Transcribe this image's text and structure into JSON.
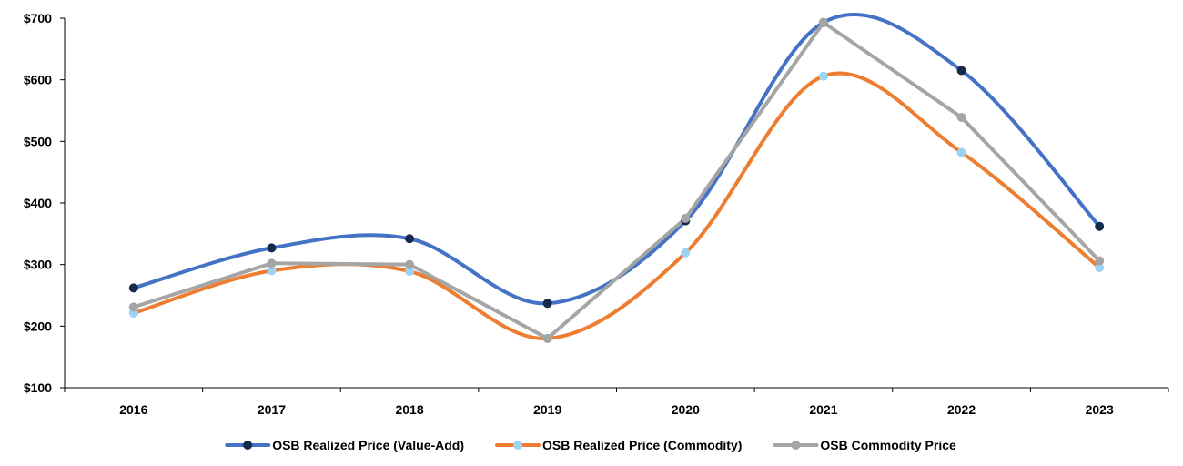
{
  "chart_data": {
    "type": "line",
    "title": "",
    "xlabel": "",
    "ylabel": "",
    "categories": [
      "2016",
      "2017",
      "2018",
      "2019",
      "2020",
      "2021",
      "2022",
      "2023"
    ],
    "ylim": [
      100,
      700
    ],
    "yticks": [
      100,
      200,
      300,
      400,
      500,
      600,
      700
    ],
    "ytick_labels": [
      "$100",
      "$200",
      "$300",
      "$400",
      "$500",
      "$600",
      "$700"
    ],
    "grid": false,
    "legend_position": "bottom",
    "series": [
      {
        "name": "OSB Realized Price (Value-Add)",
        "values": [
          262,
          327,
          342,
          237,
          371,
          693,
          615,
          362
        ],
        "line_color": "#4472C4",
        "marker_color": "#152A4C",
        "smooth": true
      },
      {
        "name": "OSB Realized Price (Commodity)",
        "values": [
          221,
          290,
          289,
          180,
          319,
          606,
          482,
          295
        ],
        "line_color": "#ED7D31",
        "marker_color": "#9DD3F2",
        "smooth": true
      },
      {
        "name": "OSB Commodity Price",
        "values": [
          231,
          302,
          300,
          180,
          375,
          693,
          539,
          306
        ],
        "line_color": "#A5A5A5",
        "marker_color": "#A5A5A5",
        "smooth": false
      }
    ]
  }
}
